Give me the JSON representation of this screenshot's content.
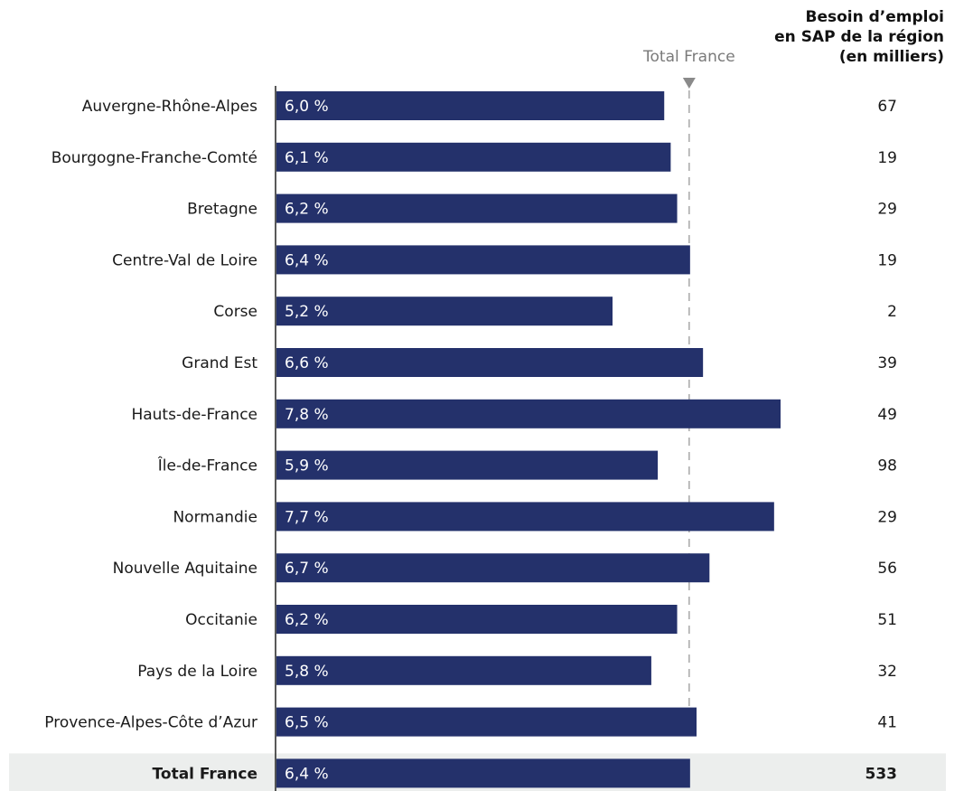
{
  "header": {
    "need_title_lines": [
      "Besoin d’emploi",
      "en SAP de la région",
      "(en milliers)"
    ]
  },
  "reference_label": "Total France",
  "colors": {
    "bar": "#24316b",
    "bar_label": "#ffffff",
    "reference_line": "#9a9a9a",
    "total_row_bg": "#eceeed",
    "axis": "#222222"
  },
  "chart_data": {
    "type": "bar",
    "orientation": "horizontal",
    "categories": [
      "Auvergne-Rhône-Alpes",
      "Bourgogne-Franche-Comté",
      "Bretagne",
      "Centre-Val de Loire",
      "Corse",
      "Grand Est",
      "Hauts-de-France",
      "Île-de-France",
      "Normandie",
      "Nouvelle Aquitaine",
      "Occitanie",
      "Pays de la Loire",
      "Provence-Alpes-Côte d’Azur",
      "Total France"
    ],
    "values": [
      6.0,
      6.1,
      6.2,
      6.4,
      5.2,
      6.6,
      7.8,
      5.9,
      7.7,
      6.7,
      6.2,
      5.8,
      6.5,
      6.4
    ],
    "value_labels": [
      "6,0 %",
      "6,1 %",
      "6,2 %",
      "6,4 %",
      "5,2 %",
      "6,6 %",
      "7,8 %",
      "5,9 %",
      "7,7 %",
      "6,7 %",
      "6,2 %",
      "5,8 %",
      "6,5 %",
      "6,4 %"
    ],
    "employment_need_thousands": [
      67,
      19,
      29,
      19,
      2,
      39,
      49,
      98,
      29,
      56,
      51,
      32,
      41,
      533
    ],
    "employment_need_labels": [
      "67",
      "19",
      "29",
      "19",
      "2",
      "39",
      "49",
      "98",
      "29",
      "56",
      "51",
      "32",
      "41",
      "533"
    ],
    "reference_value": 6.4,
    "total_row_index": 13,
    "xlim": [
      0,
      8
    ]
  }
}
